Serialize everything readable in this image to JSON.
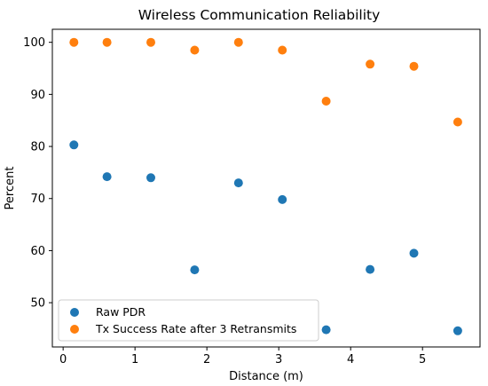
{
  "chart_data": {
    "type": "scatter",
    "title": "Wireless Communication Reliability",
    "xlabel": "Distance (m)",
    "ylabel": "Percent",
    "xlim": [
      -0.15,
      5.8
    ],
    "ylim": [
      41.5,
      102.5
    ],
    "xticks": [
      0,
      1,
      2,
      3,
      4,
      5
    ],
    "yticks": [
      50,
      60,
      70,
      80,
      90,
      100
    ],
    "grid": false,
    "legend_position": "lower-left",
    "series": [
      {
        "name": "Raw PDR",
        "color": "#1f77b4",
        "x": [
          0.15,
          0.61,
          1.22,
          1.83,
          2.44,
          3.05,
          3.66,
          4.27,
          4.88,
          5.49
        ],
        "y": [
          80.3,
          74.2,
          74.0,
          56.3,
          73.0,
          69.8,
          44.8,
          56.4,
          59.5,
          44.6
        ]
      },
      {
        "name": "Tx Success Rate after 3 Retransmits",
        "color": "#ff7f0e",
        "x": [
          0.15,
          0.61,
          1.22,
          1.83,
          2.44,
          3.05,
          3.66,
          4.27,
          4.88,
          5.49
        ],
        "y": [
          100.0,
          100.0,
          100.0,
          98.5,
          100.0,
          98.5,
          88.7,
          95.8,
          95.4,
          84.7
        ]
      }
    ]
  }
}
